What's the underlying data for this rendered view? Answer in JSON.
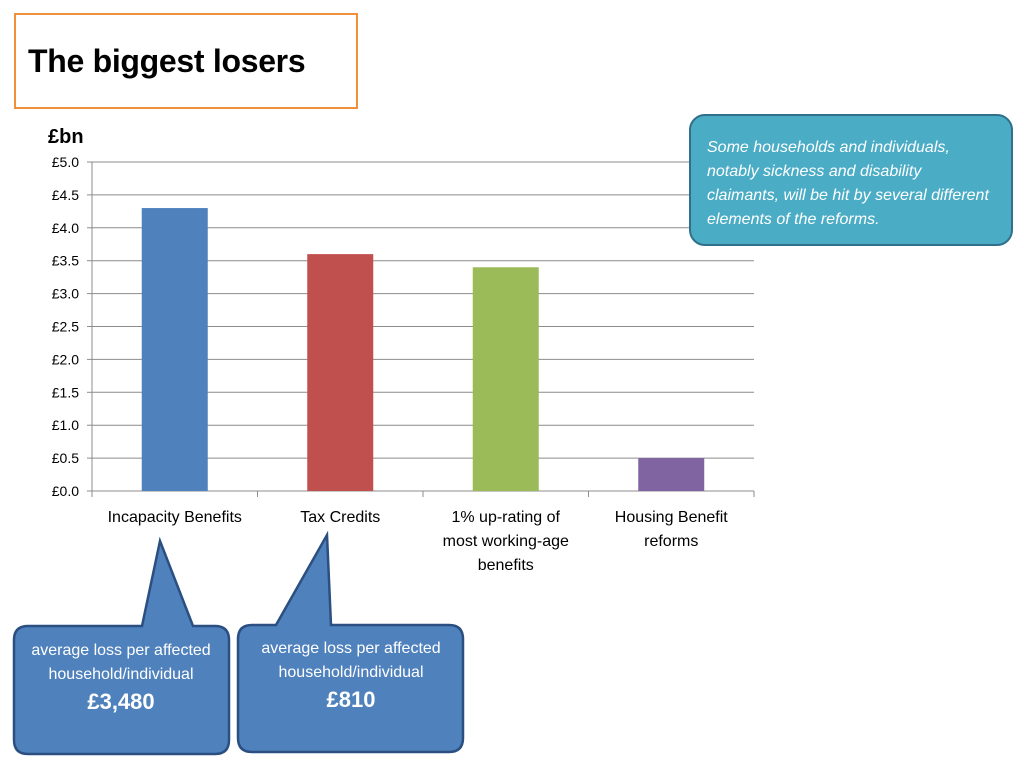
{
  "title": "The biggest losers",
  "note": "Some households and individuals, notably sickness and disability claimants, will be hit by several different elements of the reforms.",
  "callouts": [
    {
      "text": "average loss per affected household/individual",
      "amount": "£3,480"
    },
    {
      "text": "average loss per affected household/individual",
      "amount": "£810"
    }
  ],
  "colors": {
    "title_border": "#f0903a",
    "note_fill": "#4bacc6",
    "callout_fill": "#4f81bd",
    "callout_border": "#2b4f80"
  },
  "chart_data": {
    "type": "bar",
    "ylabel": "£bn",
    "ylim": [
      0,
      5
    ],
    "ytick_step": 0.5,
    "ytick_labels": [
      "£0.0",
      "£0.5",
      "£1.0",
      "£1.5",
      "£2.0",
      "£2.5",
      "£3.0",
      "£3.5",
      "£4.0",
      "£4.5",
      "£5.0"
    ],
    "grid": true,
    "categories": [
      [
        "Incapacity Benefits"
      ],
      [
        "Tax Credits"
      ],
      [
        "1% up-rating of",
        "most working-age",
        "benefits"
      ],
      [
        "Housing Benefit",
        "reforms"
      ]
    ],
    "values": [
      4.3,
      3.6,
      3.4,
      0.5
    ],
    "bar_colors": [
      "#4f81bd",
      "#c0504d",
      "#9bbb59",
      "#8064a2"
    ]
  }
}
